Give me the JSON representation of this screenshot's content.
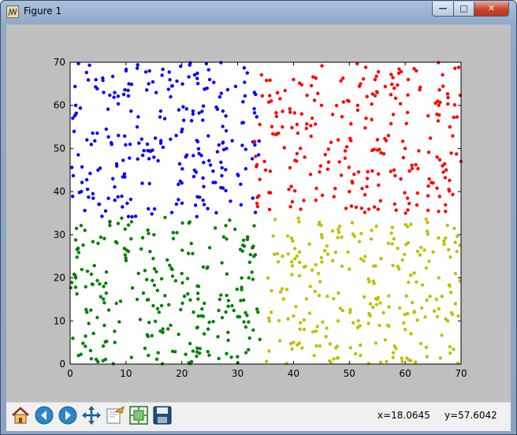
{
  "window": {
    "title": "Figure 1",
    "buttons": {
      "minimize": "—",
      "maximize": "□",
      "close": "✕"
    }
  },
  "toolbar": {
    "icons": [
      "home-icon",
      "back-icon",
      "forward-icon",
      "pan-icon",
      "zoom-icon",
      "subplots-icon",
      "save-icon"
    ],
    "coord_x": "x=18.0645",
    "coord_y": "y=57.6042"
  },
  "colors": {
    "blue": "#0000ff",
    "red": "#ff0000",
    "green": "#008000",
    "yellow": "#bfbf00"
  },
  "chart_data": {
    "type": "scatter",
    "title": "",
    "xlabel": "",
    "ylabel": "",
    "xlim": [
      0,
      70
    ],
    "ylim": [
      0,
      70
    ],
    "xticks": [
      "0",
      "10",
      "20",
      "30",
      "40",
      "50",
      "60",
      "70"
    ],
    "yticks": [
      "0",
      "10",
      "20",
      "30",
      "40",
      "50",
      "60",
      "70"
    ],
    "grid": false,
    "legend": "none",
    "series": [
      {
        "color": "#0000ff",
        "points_sample": [
          [
            1,
            60
          ],
          [
            3,
            52
          ],
          [
            5,
            45
          ],
          [
            8,
            38
          ],
          [
            12,
            55
          ],
          [
            15,
            48
          ],
          [
            18,
            62
          ],
          [
            20,
            42
          ],
          [
            22,
            58
          ],
          [
            25,
            66
          ],
          [
            28,
            50
          ],
          [
            30,
            44
          ],
          [
            33,
            63
          ],
          [
            10,
            68
          ],
          [
            14,
            36
          ],
          [
            2,
            40
          ],
          [
            6,
            63
          ],
          [
            19,
            53
          ],
          [
            24,
            37
          ],
          [
            31,
            56
          ]
        ],
        "x_range": [
          0,
          34
        ],
        "y_range": [
          34,
          70
        ]
      },
      {
        "color": "#ff0000",
        "points_sample": [
          [
            35,
            45
          ],
          [
            38,
            55
          ],
          [
            40,
            66
          ],
          [
            42,
            48
          ],
          [
            45,
            60
          ],
          [
            48,
            52
          ],
          [
            50,
            40
          ],
          [
            53,
            57
          ],
          [
            55,
            63
          ],
          [
            58,
            45
          ],
          [
            60,
            50
          ],
          [
            62,
            68
          ],
          [
            65,
            42
          ],
          [
            68,
            55
          ],
          [
            70,
            47
          ],
          [
            36,
            61
          ],
          [
            44,
            38
          ],
          [
            52,
            65
          ],
          [
            57,
            53
          ],
          [
            66,
            60
          ]
        ],
        "x_range": [
          33,
          70
        ],
        "y_range": [
          35,
          70
        ]
      },
      {
        "color": "#008000",
        "points_sample": [
          [
            1,
            20
          ],
          [
            3,
            12
          ],
          [
            5,
            28
          ],
          [
            8,
            5
          ],
          [
            10,
            24
          ],
          [
            12,
            15
          ],
          [
            15,
            30
          ],
          [
            18,
            9
          ],
          [
            20,
            21
          ],
          [
            22,
            3
          ],
          [
            25,
            27
          ],
          [
            27,
            16
          ],
          [
            30,
            11
          ],
          [
            32,
            20
          ],
          [
            6,
            18
          ],
          [
            14,
            2
          ],
          [
            17,
            34
          ],
          [
            24,
            7
          ],
          [
            28,
            29
          ],
          [
            11,
            33
          ]
        ],
        "x_range": [
          0,
          34
        ],
        "y_range": [
          0,
          34
        ]
      },
      {
        "color": "#bfbf00",
        "points_sample": [
          [
            36,
            12
          ],
          [
            38,
            25
          ],
          [
            40,
            5
          ],
          [
            43,
            18
          ],
          [
            45,
            30
          ],
          [
            48,
            10
          ],
          [
            50,
            22
          ],
          [
            52,
            2
          ],
          [
            55,
            15
          ],
          [
            57,
            28
          ],
          [
            60,
            8
          ],
          [
            62,
            19
          ],
          [
            65,
            26
          ],
          [
            68,
            4
          ],
          [
            69,
            14
          ],
          [
            41,
            33
          ],
          [
            47,
            24
          ],
          [
            54,
            31
          ],
          [
            59,
            13
          ],
          [
            66,
            20
          ]
        ],
        "x_range": [
          35,
          70
        ],
        "y_range": [
          0,
          34
        ]
      }
    ]
  }
}
